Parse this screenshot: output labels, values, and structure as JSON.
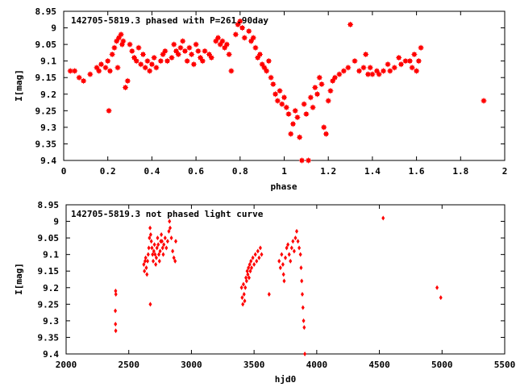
{
  "colors": {
    "marker": "#ff0000",
    "frame": "#000000",
    "background": "#ffffff"
  },
  "chart_data": [
    {
      "type": "scatter",
      "title": "142705-5819.3 phased with P=261.90day",
      "xlabel": "phase",
      "ylabel": "I[mag]",
      "xlim": [
        0,
        2
      ],
      "ylim": [
        9.4,
        8.95
      ],
      "y_inverted": true,
      "xticks": [
        "0",
        "0.2",
        "0.4",
        "0.6",
        "0.8",
        "1",
        "1.2",
        "1.4",
        "1.6",
        "1.8",
        "2"
      ],
      "xtick_values": [
        0,
        0.2,
        0.4,
        0.6,
        0.8,
        1.0,
        1.2,
        1.4,
        1.6,
        1.8,
        2.0
      ],
      "yticks": [
        "8.95",
        "9",
        "9.05",
        "9.1",
        "9.15",
        "9.2",
        "9.25",
        "9.3",
        "9.35",
        "9.4"
      ],
      "ytick_values": [
        8.95,
        9.0,
        9.05,
        9.1,
        9.15,
        9.2,
        9.25,
        9.3,
        9.35,
        9.4
      ],
      "grid": false,
      "legend": "none",
      "marker": "filled-square-cross",
      "points": [
        [
          0.03,
          9.13
        ],
        [
          0.05,
          9.13
        ],
        [
          0.07,
          9.15
        ],
        [
          0.09,
          9.16
        ],
        [
          0.12,
          9.14
        ],
        [
          0.15,
          9.12
        ],
        [
          0.16,
          9.13
        ],
        [
          0.17,
          9.11
        ],
        [
          0.19,
          9.12
        ],
        [
          0.2,
          9.1
        ],
        [
          0.205,
          9.25
        ],
        [
          0.21,
          9.13
        ],
        [
          0.22,
          9.08
        ],
        [
          0.23,
          9.06
        ],
        [
          0.24,
          9.04
        ],
        [
          0.245,
          9.12
        ],
        [
          0.25,
          9.03
        ],
        [
          0.26,
          9.02
        ],
        [
          0.265,
          9.05
        ],
        [
          0.27,
          9.04
        ],
        [
          0.28,
          9.18
        ],
        [
          0.29,
          9.16
        ],
        [
          0.3,
          9.05
        ],
        [
          0.31,
          9.07
        ],
        [
          0.32,
          9.09
        ],
        [
          0.33,
          9.1
        ],
        [
          0.34,
          9.06
        ],
        [
          0.35,
          9.11
        ],
        [
          0.36,
          9.08
        ],
        [
          0.37,
          9.12
        ],
        [
          0.38,
          9.1
        ],
        [
          0.39,
          9.13
        ],
        [
          0.4,
          9.11
        ],
        [
          0.41,
          9.09
        ],
        [
          0.42,
          9.12
        ],
        [
          0.44,
          9.1
        ],
        [
          0.45,
          9.08
        ],
        [
          0.46,
          9.07
        ],
        [
          0.47,
          9.1
        ],
        [
          0.49,
          9.09
        ],
        [
          0.5,
          9.05
        ],
        [
          0.51,
          9.07
        ],
        [
          0.52,
          9.08
        ],
        [
          0.53,
          9.06
        ],
        [
          0.54,
          9.04
        ],
        [
          0.55,
          9.07
        ],
        [
          0.56,
          9.1
        ],
        [
          0.57,
          9.06
        ],
        [
          0.58,
          9.08
        ],
        [
          0.59,
          9.11
        ],
        [
          0.6,
          9.05
        ],
        [
          0.61,
          9.07
        ],
        [
          0.62,
          9.09
        ],
        [
          0.63,
          9.1
        ],
        [
          0.64,
          9.07
        ],
        [
          0.66,
          9.08
        ],
        [
          0.67,
          9.09
        ],
        [
          0.69,
          9.04
        ],
        [
          0.7,
          9.03
        ],
        [
          0.71,
          9.05
        ],
        [
          0.72,
          9.04
        ],
        [
          0.73,
          9.06
        ],
        [
          0.74,
          9.05
        ],
        [
          0.75,
          9.08
        ],
        [
          0.76,
          9.13
        ],
        [
          0.78,
          9.02
        ],
        [
          0.79,
          8.99
        ],
        [
          0.8,
          8.98
        ],
        [
          0.81,
          9.0
        ],
        [
          0.82,
          9.03
        ],
        [
          0.84,
          9.01
        ],
        [
          0.85,
          9.04
        ],
        [
          0.86,
          9.03
        ],
        [
          0.87,
          9.06
        ],
        [
          0.88,
          9.09
        ],
        [
          0.89,
          9.08
        ],
        [
          0.9,
          9.11
        ],
        [
          0.91,
          9.12
        ],
        [
          0.92,
          9.13
        ],
        [
          0.93,
          9.1
        ],
        [
          0.94,
          9.15
        ],
        [
          0.95,
          9.17
        ],
        [
          0.96,
          9.2
        ],
        [
          0.97,
          9.22
        ],
        [
          0.98,
          9.19
        ],
        [
          0.99,
          9.23
        ],
        [
          1.0,
          9.21
        ],
        [
          1.01,
          9.24
        ],
        [
          1.02,
          9.26
        ],
        [
          1.03,
          9.32
        ],
        [
          1.04,
          9.29
        ],
        [
          1.05,
          9.25
        ],
        [
          1.06,
          9.27
        ],
        [
          1.07,
          9.33
        ],
        [
          1.08,
          9.4
        ],
        [
          1.09,
          9.23
        ],
        [
          1.1,
          9.26
        ],
        [
          1.11,
          9.4
        ],
        [
          1.12,
          9.21
        ],
        [
          1.13,
          9.24
        ],
        [
          1.14,
          9.18
        ],
        [
          1.15,
          9.2
        ],
        [
          1.16,
          9.15
        ],
        [
          1.17,
          9.17
        ],
        [
          1.18,
          9.3
        ],
        [
          1.19,
          9.32
        ],
        [
          1.2,
          9.22
        ],
        [
          1.21,
          9.19
        ],
        [
          1.22,
          9.16
        ],
        [
          1.23,
          9.15
        ],
        [
          1.25,
          9.14
        ],
        [
          1.27,
          9.13
        ],
        [
          1.29,
          9.12
        ],
        [
          1.3,
          8.99
        ],
        [
          1.32,
          9.1
        ],
        [
          1.34,
          9.13
        ],
        [
          1.36,
          9.12
        ],
        [
          1.37,
          9.08
        ],
        [
          1.38,
          9.14
        ],
        [
          1.39,
          9.12
        ],
        [
          1.4,
          9.14
        ],
        [
          1.42,
          9.13
        ],
        [
          1.43,
          9.14
        ],
        [
          1.45,
          9.13
        ],
        [
          1.47,
          9.11
        ],
        [
          1.48,
          9.13
        ],
        [
          1.5,
          9.12
        ],
        [
          1.52,
          9.09
        ],
        [
          1.53,
          9.11
        ],
        [
          1.55,
          9.1
        ],
        [
          1.57,
          9.1
        ],
        [
          1.58,
          9.12
        ],
        [
          1.59,
          9.08
        ],
        [
          1.6,
          9.13
        ],
        [
          1.61,
          9.1
        ],
        [
          1.62,
          9.06
        ],
        [
          1.905,
          9.22
        ]
      ]
    },
    {
      "type": "scatter",
      "title": "142705-5819.3 not phased light curve",
      "xlabel": "hjd0",
      "ylabel": "I[mag]",
      "xlim": [
        2000,
        5500
      ],
      "ylim": [
        9.4,
        8.95
      ],
      "y_inverted": true,
      "xticks": [
        "2000",
        "2500",
        "3000",
        "3500",
        "4000",
        "4500",
        "5000",
        "5500"
      ],
      "xtick_values": [
        2000,
        2500,
        3000,
        3500,
        4000,
        4500,
        5000,
        5500
      ],
      "yticks": [
        "8.95",
        "9",
        "9.05",
        "9.1",
        "9.15",
        "9.2",
        "9.25",
        "9.3",
        "9.35",
        "9.4"
      ],
      "ytick_values": [
        8.95,
        9.0,
        9.05,
        9.1,
        9.15,
        9.2,
        9.25,
        9.3,
        9.35,
        9.4
      ],
      "grid": false,
      "legend": "none",
      "marker": "small-diamond",
      "points": [
        [
          2395,
          9.21
        ],
        [
          2397,
          9.22
        ],
        [
          2393,
          9.27
        ],
        [
          2394,
          9.31
        ],
        [
          2396,
          9.33
        ],
        [
          2620,
          9.13
        ],
        [
          2625,
          9.15
        ],
        [
          2630,
          9.12
        ],
        [
          2635,
          9.11
        ],
        [
          2640,
          9.14
        ],
        [
          2645,
          9.16
        ],
        [
          2650,
          9.12
        ],
        [
          2655,
          9.1
        ],
        [
          2660,
          9.08
        ],
        [
          2665,
          9.05
        ],
        [
          2670,
          9.02
        ],
        [
          2672,
          9.25
        ],
        [
          2675,
          9.04
        ],
        [
          2680,
          9.06
        ],
        [
          2685,
          9.08
        ],
        [
          2690,
          9.1
        ],
        [
          2695,
          9.12
        ],
        [
          2700,
          9.09
        ],
        [
          2705,
          9.07
        ],
        [
          2710,
          9.1
        ],
        [
          2715,
          9.13
        ],
        [
          2720,
          9.11
        ],
        [
          2725,
          9.08
        ],
        [
          2730,
          9.05
        ],
        [
          2735,
          9.07
        ],
        [
          2740,
          9.1
        ],
        [
          2745,
          9.12
        ],
        [
          2750,
          9.09
        ],
        [
          2755,
          9.06
        ],
        [
          2760,
          9.04
        ],
        [
          2765,
          9.06
        ],
        [
          2770,
          9.08
        ],
        [
          2775,
          9.1
        ],
        [
          2780,
          9.07
        ],
        [
          2790,
          9.05
        ],
        [
          2800,
          9.08
        ],
        [
          2810,
          9.06
        ],
        [
          2820,
          9.03
        ],
        [
          2825,
          9.0
        ],
        [
          2830,
          9.02
        ],
        [
          2840,
          9.05
        ],
        [
          2850,
          9.09
        ],
        [
          2860,
          9.11
        ],
        [
          2870,
          9.12
        ],
        [
          2875,
          9.06
        ],
        [
          3400,
          9.2
        ],
        [
          3405,
          9.23
        ],
        [
          3410,
          9.25
        ],
        [
          3415,
          9.19
        ],
        [
          3420,
          9.22
        ],
        [
          3425,
          9.24
        ],
        [
          3430,
          9.2
        ],
        [
          3435,
          9.17
        ],
        [
          3440,
          9.18
        ],
        [
          3445,
          9.15
        ],
        [
          3450,
          9.16
        ],
        [
          3455,
          9.14
        ],
        [
          3460,
          9.17
        ],
        [
          3465,
          9.13
        ],
        [
          3470,
          9.15
        ],
        [
          3475,
          9.12
        ],
        [
          3480,
          9.14
        ],
        [
          3490,
          9.11
        ],
        [
          3500,
          9.13
        ],
        [
          3510,
          9.1
        ],
        [
          3520,
          9.12
        ],
        [
          3530,
          9.09
        ],
        [
          3540,
          9.11
        ],
        [
          3550,
          9.08
        ],
        [
          3560,
          9.1
        ],
        [
          3620,
          9.22
        ],
        [
          3700,
          9.12
        ],
        [
          3710,
          9.14
        ],
        [
          3720,
          9.1
        ],
        [
          3730,
          9.13
        ],
        [
          3735,
          9.16
        ],
        [
          3740,
          9.18
        ],
        [
          3750,
          9.11
        ],
        [
          3760,
          9.08
        ],
        [
          3770,
          9.07
        ],
        [
          3780,
          9.1
        ],
        [
          3790,
          9.12
        ],
        [
          3800,
          9.08
        ],
        [
          3810,
          9.06
        ],
        [
          3820,
          9.09
        ],
        [
          3830,
          9.05
        ],
        [
          3840,
          9.03
        ],
        [
          3850,
          9.06
        ],
        [
          3860,
          9.08
        ],
        [
          3870,
          9.1
        ],
        [
          3875,
          9.14
        ],
        [
          3880,
          9.18
        ],
        [
          3885,
          9.22
        ],
        [
          3890,
          9.26
        ],
        [
          3895,
          9.3
        ],
        [
          3900,
          9.32
        ],
        [
          3905,
          9.4
        ],
        [
          4530,
          8.99
        ],
        [
          4960,
          9.2
        ],
        [
          4990,
          9.23
        ]
      ]
    }
  ]
}
